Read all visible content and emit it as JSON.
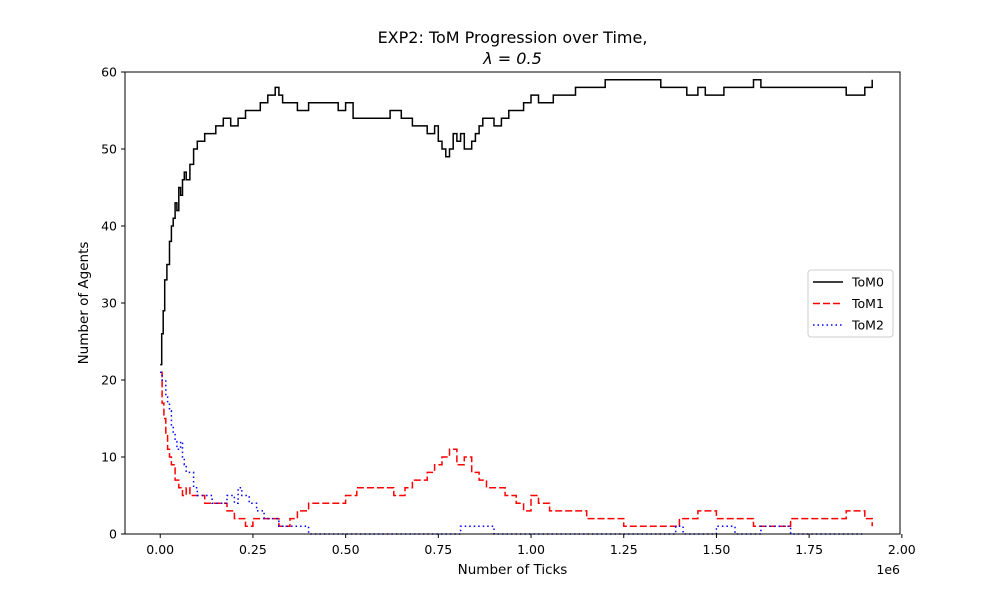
{
  "chart_data": {
    "type": "line",
    "title": "EXP2: ToM Progression over Time,",
    "subtitle": "λ = 0.5",
    "xlabel": "Number of Ticks",
    "ylabel": "Number of Agents",
    "x_offset_label": "1e6",
    "xlim": [
      -0.095,
      1.995
    ],
    "ylim": [
      0,
      60
    ],
    "x_ticks": [
      0.0,
      0.25,
      0.5,
      0.75,
      1.0,
      1.25,
      1.5,
      1.75,
      2.0
    ],
    "x_tick_labels": [
      "0.00",
      "0.25",
      "0.50",
      "0.75",
      "1.00",
      "1.25",
      "1.50",
      "1.75",
      "2.00"
    ],
    "y_ticks": [
      0,
      10,
      20,
      30,
      40,
      50,
      60
    ],
    "y_tick_labels": [
      "0",
      "10",
      "20",
      "30",
      "40",
      "50",
      "60"
    ],
    "legend_position": "center-right",
    "grid": false,
    "series": [
      {
        "name": "ToM0",
        "color": "#000000",
        "style": "solid",
        "x": [
          0.0,
          0.004,
          0.008,
          0.012,
          0.018,
          0.025,
          0.03,
          0.035,
          0.04,
          0.045,
          0.05,
          0.055,
          0.06,
          0.065,
          0.07,
          0.08,
          0.09,
          0.1,
          0.11,
          0.12,
          0.13,
          0.15,
          0.17,
          0.19,
          0.21,
          0.23,
          0.25,
          0.27,
          0.29,
          0.31,
          0.32,
          0.33,
          0.35,
          0.37,
          0.4,
          0.43,
          0.46,
          0.48,
          0.5,
          0.52,
          0.55,
          0.58,
          0.6,
          0.62,
          0.65,
          0.68,
          0.7,
          0.72,
          0.74,
          0.75,
          0.76,
          0.77,
          0.78,
          0.79,
          0.8,
          0.81,
          0.82,
          0.83,
          0.84,
          0.85,
          0.86,
          0.87,
          0.88,
          0.9,
          0.92,
          0.94,
          0.96,
          0.98,
          1.0,
          1.02,
          1.04,
          1.06,
          1.08,
          1.1,
          1.12,
          1.15,
          1.2,
          1.25,
          1.3,
          1.35,
          1.38,
          1.4,
          1.42,
          1.45,
          1.47,
          1.5,
          1.52,
          1.55,
          1.58,
          1.6,
          1.62,
          1.65,
          1.7,
          1.75,
          1.8,
          1.85,
          1.9,
          1.92
        ],
        "y": [
          22,
          26,
          29,
          33,
          35,
          38,
          40,
          41,
          43,
          42,
          45,
          44,
          46,
          47,
          46,
          48,
          50,
          51,
          51,
          52,
          52,
          53,
          54,
          53,
          54,
          55,
          55,
          56,
          57,
          58,
          57,
          56,
          56,
          55,
          56,
          56,
          56,
          55,
          56,
          54,
          54,
          54,
          54,
          55,
          54,
          53,
          53,
          52,
          53,
          51,
          50,
          49,
          50,
          52,
          51,
          52,
          50,
          50,
          51,
          52,
          53,
          54,
          54,
          53,
          54,
          55,
          55,
          56,
          57,
          56,
          56,
          57,
          57,
          57,
          58,
          58,
          59,
          59,
          59,
          58,
          58,
          58,
          57,
          58,
          57,
          57,
          58,
          58,
          58,
          59,
          58,
          58,
          58,
          58,
          58,
          57,
          58,
          59
        ]
      },
      {
        "name": "ToM1",
        "color": "#ff0000",
        "style": "dashed",
        "x": [
          0.0,
          0.005,
          0.01,
          0.015,
          0.02,
          0.025,
          0.03,
          0.04,
          0.05,
          0.06,
          0.07,
          0.08,
          0.1,
          0.12,
          0.15,
          0.18,
          0.2,
          0.23,
          0.25,
          0.28,
          0.3,
          0.32,
          0.35,
          0.37,
          0.4,
          0.43,
          0.46,
          0.48,
          0.5,
          0.53,
          0.56,
          0.6,
          0.63,
          0.66,
          0.68,
          0.7,
          0.72,
          0.74,
          0.76,
          0.78,
          0.8,
          0.82,
          0.84,
          0.86,
          0.88,
          0.9,
          0.93,
          0.96,
          0.98,
          1.0,
          1.02,
          1.05,
          1.1,
          1.15,
          1.2,
          1.25,
          1.3,
          1.35,
          1.4,
          1.45,
          1.5,
          1.55,
          1.6,
          1.65,
          1.7,
          1.75,
          1.8,
          1.85,
          1.9,
          1.92
        ],
        "y": [
          21,
          17,
          15,
          13,
          11,
          10,
          9,
          7,
          6,
          5,
          6,
          5,
          5,
          4,
          4,
          3,
          2,
          1,
          2,
          2,
          2,
          1,
          2,
          3,
          4,
          4,
          4,
          4,
          5,
          6,
          6,
          6,
          5,
          6,
          7,
          7,
          8,
          9,
          10,
          11,
          9,
          10,
          8,
          7,
          6,
          6,
          5,
          4,
          3,
          5,
          4,
          3,
          3,
          2,
          2,
          1,
          1,
          1,
          2,
          3,
          2,
          2,
          1,
          1,
          2,
          2,
          2,
          3,
          2,
          1
        ]
      },
      {
        "name": "ToM2",
        "color": "#0000ff",
        "style": "dotted",
        "x": [
          0.0,
          0.005,
          0.01,
          0.015,
          0.02,
          0.025,
          0.03,
          0.035,
          0.04,
          0.045,
          0.05,
          0.055,
          0.06,
          0.065,
          0.07,
          0.08,
          0.09,
          0.1,
          0.12,
          0.14,
          0.16,
          0.18,
          0.2,
          0.21,
          0.22,
          0.24,
          0.26,
          0.28,
          0.3,
          0.32,
          0.34,
          0.36,
          0.38,
          0.4,
          0.5,
          0.6,
          0.7,
          0.8,
          0.81,
          0.9,
          1.0,
          1.2,
          1.37,
          1.39,
          1.41,
          1.48,
          1.5,
          1.55,
          1.6,
          1.62,
          1.7,
          1.8,
          1.9
        ],
        "y": [
          21,
          20,
          20,
          18,
          17,
          16,
          14,
          13,
          12,
          11,
          11,
          12,
          10,
          9,
          8,
          8,
          6,
          5,
          5,
          4,
          4,
          5,
          4,
          6,
          5,
          4,
          3,
          2,
          2,
          1,
          1,
          1,
          1,
          0,
          0,
          0,
          0,
          0,
          1,
          0,
          0,
          0,
          0,
          1,
          0,
          0,
          1,
          0,
          0,
          1,
          0,
          0,
          0
        ]
      }
    ]
  }
}
